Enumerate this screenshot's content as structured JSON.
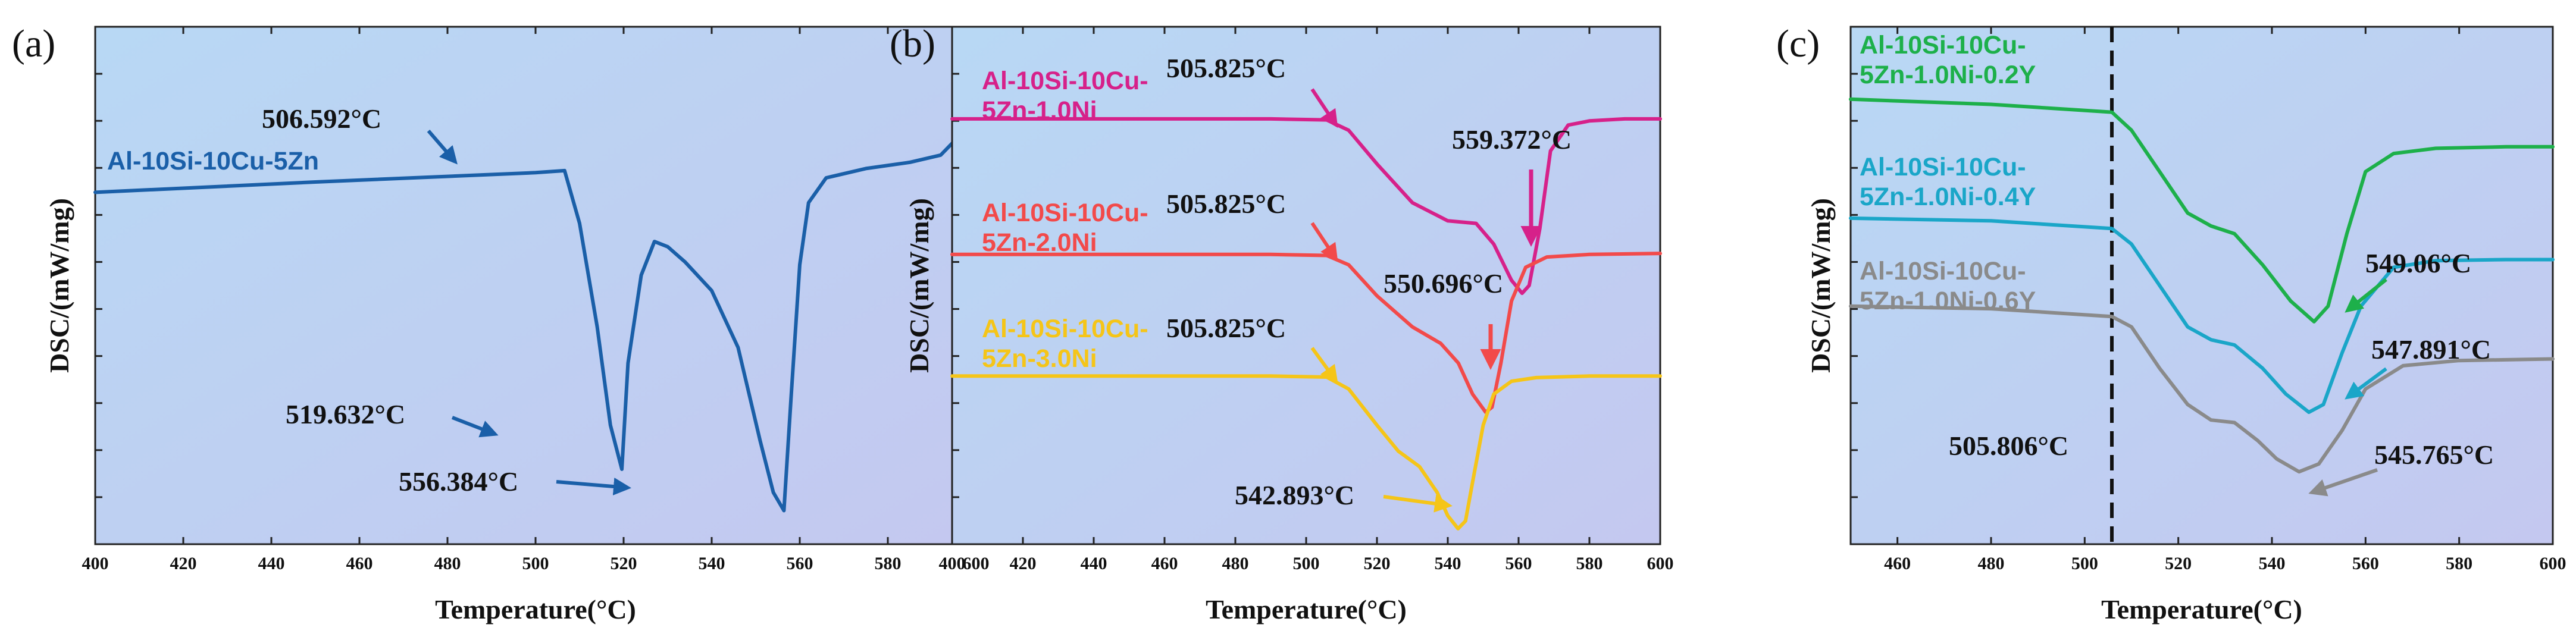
{
  "chart_data": [
    {
      "type": "line",
      "panel": "(a)",
      "xlabel": "Temperature(°C)",
      "ylabel": "DSC/(mW/mg)",
      "xlim": [
        400,
        600
      ],
      "xticks": [
        "400",
        "420",
        "440",
        "460",
        "480",
        "500",
        "520",
        "540",
        "560",
        "580",
        "600"
      ],
      "y_ticks_labeled": false,
      "background": [
        "#b8d8f4",
        "#c4c8f0"
      ],
      "series": [
        {
          "name": "Al-10Si-10Cu-5Zn",
          "color": "#1a5fa8",
          "x": [
            400,
            450,
            500,
            506.6,
            510,
            514,
            517,
            519.6,
            521,
            524,
            527,
            530,
            534,
            540,
            546,
            551,
            554,
            556.4,
            558,
            560,
            562,
            566,
            575,
            585,
            592,
            596,
            600
          ],
          "y": [
            0.68,
            0.7,
            0.718,
            0.722,
            0.62,
            0.42,
            0.23,
            0.145,
            0.35,
            0.52,
            0.585,
            0.575,
            0.545,
            0.49,
            0.38,
            0.2,
            0.1,
            0.065,
            0.28,
            0.54,
            0.66,
            0.708,
            0.726,
            0.738,
            0.752,
            0.787,
            0.79
          ]
        }
      ],
      "annotations": [
        {
          "text": "506.592°C",
          "x": 506.6,
          "y": 0.722
        },
        {
          "text": "519.632°C",
          "x": 519.6,
          "y": 0.145
        },
        {
          "text": "556.384°C",
          "x": 556.4,
          "y": 0.065
        }
      ]
    },
    {
      "type": "line",
      "panel": "(b)",
      "xlabel": "Temperature(°C)",
      "ylabel": "DSC/(mW/mg)",
      "xlim": [
        400,
        600
      ],
      "xticks": [
        "400",
        "420",
        "440",
        "460",
        "480",
        "500",
        "520",
        "540",
        "560",
        "580",
        "600"
      ],
      "y_ticks_labeled": false,
      "background": [
        "#b8d8f4",
        "#c4c8f0"
      ],
      "series": [
        {
          "name_lines": [
            "Al-10Si-10Cu-",
            "5Zn-1.0Ni"
          ],
          "color": "#d6218a",
          "x": [
            400,
            490,
            505.8,
            512,
            520,
            530,
            540,
            548,
            553,
            558,
            561,
            563,
            566,
            569,
            574,
            580,
            590,
            600
          ],
          "y": [
            0.822,
            0.822,
            0.82,
            0.8,
            0.735,
            0.66,
            0.625,
            0.62,
            0.58,
            0.51,
            0.485,
            0.5,
            0.61,
            0.76,
            0.81,
            0.818,
            0.822,
            0.822
          ]
        },
        {
          "name_lines": [
            "Al-10Si-10Cu-",
            "5Zn-2.0Ni"
          ],
          "color": "#f24a4a",
          "x": [
            400,
            490,
            505.8,
            512,
            520,
            530,
            538,
            543,
            547,
            550.7,
            552.5,
            555,
            558,
            562,
            568,
            580,
            600
          ],
          "y": [
            0.56,
            0.56,
            0.558,
            0.54,
            0.48,
            0.42,
            0.388,
            0.35,
            0.29,
            0.255,
            0.265,
            0.35,
            0.47,
            0.535,
            0.555,
            0.56,
            0.562
          ]
        },
        {
          "name_lines": [
            "Al-10Si-10Cu-",
            "5Zn-3.0Ni"
          ],
          "color": "#f5c518",
          "x": [
            400,
            490,
            505.8,
            512,
            520,
            526,
            532,
            537,
            540,
            542.9,
            545,
            547,
            550,
            553,
            558,
            565,
            580,
            600
          ],
          "y": [
            0.325,
            0.325,
            0.323,
            0.3,
            0.23,
            0.18,
            0.15,
            0.1,
            0.055,
            0.03,
            0.045,
            0.12,
            0.23,
            0.29,
            0.315,
            0.322,
            0.325,
            0.325
          ]
        }
      ],
      "annotations": [
        {
          "text": "505.825°C",
          "x": 505.8,
          "y": 0.82
        },
        {
          "text": "559.372°C",
          "x": 559.4,
          "y": 0.485
        },
        {
          "text": "505.825°C",
          "x": 505.8,
          "y": 0.558
        },
        {
          "text": "550.696°C",
          "x": 550.7,
          "y": 0.255
        },
        {
          "text": "505.825°C",
          "x": 505.8,
          "y": 0.323
        },
        {
          "text": "542.893°C",
          "x": 542.9,
          "y": 0.03
        }
      ]
    },
    {
      "type": "line",
      "panel": "(c)",
      "xlabel": "Temperature(°C)",
      "ylabel": "DSC/(mW/mg)",
      "xlim": [
        450,
        600
      ],
      "xticks": [
        "460",
        "480",
        "500",
        "520",
        "540",
        "560",
        "580",
        "600"
      ],
      "y_ticks_labeled": false,
      "background": [
        "#b8d8f4",
        "#c4c8f0"
      ],
      "reference_line": {
        "x": 505.806,
        "label": "505.806°C",
        "style": "dashed",
        "color": "#111111"
      },
      "series": [
        {
          "name_lines": [
            "Al-10Si-10Cu-",
            "5Zn-1.0Ni-0.2Y"
          ],
          "color": "#1db04a",
          "x": [
            450,
            480,
            505.8,
            510,
            516,
            522,
            527,
            532,
            538,
            544,
            549,
            552,
            556,
            560,
            566,
            575,
            590,
            600
          ],
          "y": [
            0.86,
            0.85,
            0.835,
            0.8,
            0.72,
            0.64,
            0.615,
            0.6,
            0.54,
            0.47,
            0.43,
            0.46,
            0.6,
            0.72,
            0.755,
            0.765,
            0.768,
            0.768
          ]
        },
        {
          "name_lines": [
            "Al-10Si-10Cu-",
            "5Zn-1.0Ni-0.4Y"
          ],
          "color": "#1aa6c8",
          "x": [
            450,
            480,
            505.8,
            510,
            516,
            522,
            527,
            532,
            538,
            543,
            547.9,
            551,
            555,
            559,
            566,
            575,
            590,
            600
          ],
          "y": [
            0.63,
            0.625,
            0.61,
            0.58,
            0.5,
            0.42,
            0.395,
            0.385,
            0.34,
            0.29,
            0.255,
            0.27,
            0.37,
            0.46,
            0.535,
            0.548,
            0.55,
            0.55
          ]
        },
        {
          "name_lines": [
            "Al-10Si-10Cu-",
            "5Zn-1.0Ni-0.6Y"
          ],
          "color": "#8a8a8a",
          "x": [
            450,
            480,
            505.8,
            510,
            516,
            522,
            527,
            532,
            537,
            541,
            545.8,
            550,
            555,
            560,
            568,
            580,
            600
          ],
          "y": [
            0.46,
            0.455,
            0.44,
            0.42,
            0.34,
            0.27,
            0.24,
            0.235,
            0.2,
            0.165,
            0.14,
            0.155,
            0.22,
            0.3,
            0.345,
            0.355,
            0.358
          ]
        }
      ],
      "annotations": [
        {
          "text": "549.06°C",
          "x": 549.1,
          "y": 0.43
        },
        {
          "text": "547.891°C",
          "x": 547.9,
          "y": 0.255
        },
        {
          "text": "545.765°C",
          "x": 545.8,
          "y": 0.14
        }
      ]
    }
  ]
}
